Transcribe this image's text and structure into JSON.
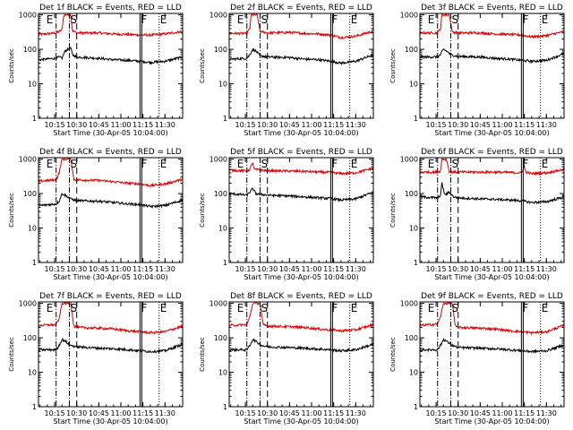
{
  "colors": {
    "events": "#000000",
    "lld": "#e00000",
    "axes": "#000000"
  },
  "shared": {
    "xlabel": "Start Time (30-Apr-05 10:04:00)",
    "ylabel": "Counts/sec",
    "x_tick_labels": [
      "10:15",
      "10:30",
      "10:45",
      "11:00",
      "11:15",
      "11:30"
    ],
    "x_tick_minutes": [
      15,
      30,
      45,
      60,
      75,
      90
    ],
    "x_range_minutes": [
      4,
      102
    ],
    "y_tick_labels": [
      "1",
      "10",
      "100",
      "1000"
    ],
    "y_tick_values": [
      1,
      10,
      100,
      1000
    ],
    "y_range": [
      1,
      1100
    ],
    "y_scale": "log",
    "markers": [
      {
        "label": "E",
        "minute": 16,
        "style": "dash-dot"
      },
      {
        "label": "S",
        "minute": 25,
        "style": "dash-dot"
      },
      {
        "label": "",
        "minute": 30,
        "style": "dashed"
      },
      {
        "label": "F",
        "minute": 73,
        "style": "solid-double"
      },
      {
        "label": "E",
        "minute": 86,
        "style": "dotted"
      }
    ]
  },
  "chart_data": [
    {
      "type": "line",
      "title": "Det 1f BLACK = Events, RED = LLD",
      "series": [
        {
          "values": [
            [
              5,
              270
            ],
            [
              16,
              300
            ],
            [
              18,
              330
            ],
            [
              20,
              360
            ],
            [
              21,
              900
            ],
            [
              22,
              1000
            ],
            [
              26,
              1000
            ],
            [
              27,
              350
            ],
            [
              30,
              300
            ],
            [
              45,
              300
            ],
            [
              55,
              280
            ],
            [
              65,
              270
            ],
            [
              73,
              260
            ],
            [
              80,
              260
            ],
            [
              90,
              280
            ],
            [
              102,
              330
            ]
          ]
        },
        {
          "values": [
            [
              5,
              50
            ],
            [
              16,
              55
            ],
            [
              18,
              60
            ],
            [
              20,
              55
            ],
            [
              22,
              90
            ],
            [
              26,
              110
            ],
            [
              27,
              70
            ],
            [
              30,
              60
            ],
            [
              45,
              55
            ],
            [
              55,
              50
            ],
            [
              65,
              48
            ],
            [
              73,
              45
            ],
            [
              80,
              42
            ],
            [
              90,
              45
            ],
            [
              102,
              60
            ]
          ]
        }
      ]
    },
    {
      "type": "line",
      "title": "Det 2f BLACK = Events, RED = LLD",
      "series": [
        {
          "values": [
            [
              5,
              290
            ],
            [
              16,
              290
            ],
            [
              18,
              400
            ],
            [
              19,
              1000
            ],
            [
              23,
              1000
            ],
            [
              25,
              330
            ],
            [
              30,
              300
            ],
            [
              45,
              310
            ],
            [
              55,
              290
            ],
            [
              65,
              280
            ],
            [
              73,
              260
            ],
            [
              80,
              220
            ],
            [
              90,
              240
            ],
            [
              102,
              340
            ]
          ]
        },
        {
          "values": [
            [
              5,
              52
            ],
            [
              16,
              55
            ],
            [
              18,
              70
            ],
            [
              20,
              100
            ],
            [
              22,
              90
            ],
            [
              25,
              65
            ],
            [
              30,
              60
            ],
            [
              45,
              58
            ],
            [
              55,
              52
            ],
            [
              65,
              50
            ],
            [
              73,
              45
            ],
            [
              80,
              40
            ],
            [
              90,
              45
            ],
            [
              102,
              70
            ]
          ]
        }
      ]
    },
    {
      "type": "line",
      "title": "Det 3f BLACK = Events, RED = LLD",
      "series": [
        {
          "values": [
            [
              5,
              300
            ],
            [
              16,
              300
            ],
            [
              18,
              400
            ],
            [
              19,
              1000
            ],
            [
              24,
              1000
            ],
            [
              26,
              320
            ],
            [
              30,
              300
            ],
            [
              45,
              300
            ],
            [
              55,
              280
            ],
            [
              65,
              270
            ],
            [
              73,
              260
            ],
            [
              80,
              230
            ],
            [
              90,
              250
            ],
            [
              102,
              330
            ]
          ]
        },
        {
          "values": [
            [
              5,
              60
            ],
            [
              16,
              60
            ],
            [
              18,
              70
            ],
            [
              20,
              100
            ],
            [
              22,
              90
            ],
            [
              25,
              70
            ],
            [
              30,
              62
            ],
            [
              45,
              60
            ],
            [
              55,
              55
            ],
            [
              65,
              52
            ],
            [
              73,
              48
            ],
            [
              80,
              45
            ],
            [
              90,
              48
            ],
            [
              102,
              75
            ]
          ]
        }
      ]
    },
    {
      "type": "line",
      "title": "Det 4f BLACK = Events, RED = LLD",
      "series": [
        {
          "values": [
            [
              5,
              230
            ],
            [
              16,
              250
            ],
            [
              18,
              400
            ],
            [
              20,
              1000
            ],
            [
              26,
              1000
            ],
            [
              28,
              260
            ],
            [
              30,
              250
            ],
            [
              45,
              240
            ],
            [
              55,
              220
            ],
            [
              65,
              200
            ],
            [
              73,
              190
            ],
            [
              80,
              170
            ],
            [
              90,
              190
            ],
            [
              102,
              260
            ]
          ]
        },
        {
          "values": [
            [
              5,
              45
            ],
            [
              16,
              50
            ],
            [
              18,
              60
            ],
            [
              20,
              100
            ],
            [
              22,
              90
            ],
            [
              26,
              70
            ],
            [
              30,
              62
            ],
            [
              45,
              60
            ],
            [
              55,
              55
            ],
            [
              65,
              50
            ],
            [
              73,
              48
            ],
            [
              80,
              42
            ],
            [
              90,
              45
            ],
            [
              102,
              65
            ]
          ]
        }
      ]
    },
    {
      "type": "line",
      "title": "Det 5f BLACK = Events, RED = LLD",
      "series": [
        {
          "values": [
            [
              5,
              480
            ],
            [
              16,
              450
            ],
            [
              18,
              500
            ],
            [
              20,
              800
            ],
            [
              21,
              500
            ],
            [
              30,
              460
            ],
            [
              45,
              450
            ],
            [
              55,
              440
            ],
            [
              65,
              420
            ],
            [
              73,
              410
            ],
            [
              80,
              380
            ],
            [
              90,
              400
            ],
            [
              102,
              550
            ]
          ]
        },
        {
          "values": [
            [
              5,
              100
            ],
            [
              16,
              90
            ],
            [
              18,
              110
            ],
            [
              20,
              140
            ],
            [
              22,
              100
            ],
            [
              30,
              90
            ],
            [
              45,
              85
            ],
            [
              55,
              80
            ],
            [
              65,
              75
            ],
            [
              73,
              72
            ],
            [
              80,
              65
            ],
            [
              90,
              70
            ],
            [
              102,
              110
            ]
          ]
        }
      ]
    },
    {
      "type": "line",
      "title": "Det 6f BLACK = Events, RED = LLD",
      "series": [
        {
          "values": [
            [
              5,
              420
            ],
            [
              16,
              420
            ],
            [
              18,
              450
            ],
            [
              19,
              1000
            ],
            [
              22,
              1000
            ],
            [
              24,
              430
            ],
            [
              30,
              420
            ],
            [
              45,
              420
            ],
            [
              55,
              420
            ],
            [
              65,
              410
            ],
            [
              73,
              400
            ],
            [
              75,
              600
            ],
            [
              76,
              420
            ],
            [
              80,
              380
            ],
            [
              90,
              400
            ],
            [
              102,
              500
            ]
          ]
        },
        {
          "values": [
            [
              5,
              80
            ],
            [
              16,
              75
            ],
            [
              18,
              90
            ],
            [
              19,
              200
            ],
            [
              21,
              90
            ],
            [
              24,
              110
            ],
            [
              27,
              80
            ],
            [
              30,
              75
            ],
            [
              45,
              70
            ],
            [
              55,
              68
            ],
            [
              65,
              65
            ],
            [
              73,
              62
            ],
            [
              80,
              55
            ],
            [
              90,
              58
            ],
            [
              102,
              80
            ]
          ]
        }
      ]
    },
    {
      "type": "line",
      "title": "Det 7f BLACK = Events, RED = LLD",
      "series": [
        {
          "values": [
            [
              5,
              230
            ],
            [
              16,
              240
            ],
            [
              18,
              350
            ],
            [
              20,
              1000
            ],
            [
              26,
              1000
            ],
            [
              28,
              220
            ],
            [
              30,
              200
            ],
            [
              45,
              190
            ],
            [
              55,
              180
            ],
            [
              65,
              160
            ],
            [
              73,
              150
            ],
            [
              80,
              140
            ],
            [
              90,
              150
            ],
            [
              102,
              220
            ]
          ]
        },
        {
          "values": [
            [
              5,
              45
            ],
            [
              16,
              45
            ],
            [
              18,
              60
            ],
            [
              20,
              90
            ],
            [
              22,
              80
            ],
            [
              26,
              60
            ],
            [
              30,
              55
            ],
            [
              45,
              50
            ],
            [
              55,
              48
            ],
            [
              65,
              45
            ],
            [
              73,
              42
            ],
            [
              80,
              40
            ],
            [
              90,
              42
            ],
            [
              102,
              65
            ]
          ]
        }
      ]
    },
    {
      "type": "line",
      "title": "Det 8f BLACK = Events, RED = LLD",
      "series": [
        {
          "values": [
            [
              5,
              230
            ],
            [
              16,
              240
            ],
            [
              18,
              400
            ],
            [
              20,
              1000
            ],
            [
              25,
              1000
            ],
            [
              27,
              240
            ],
            [
              30,
              220
            ],
            [
              45,
              210
            ],
            [
              55,
              200
            ],
            [
              65,
              180
            ],
            [
              73,
              170
            ],
            [
              80,
              160
            ],
            [
              90,
              170
            ],
            [
              102,
              240
            ]
          ]
        },
        {
          "values": [
            [
              5,
              45
            ],
            [
              16,
              45
            ],
            [
              18,
              60
            ],
            [
              20,
              90
            ],
            [
              22,
              80
            ],
            [
              26,
              60
            ],
            [
              30,
              55
            ],
            [
              45,
              52
            ],
            [
              55,
              50
            ],
            [
              65,
              47
            ],
            [
              73,
              45
            ],
            [
              80,
              42
            ],
            [
              90,
              45
            ],
            [
              102,
              65
            ]
          ]
        }
      ]
    },
    {
      "type": "line",
      "title": "Det 9f BLACK = Events, RED = LLD",
      "series": [
        {
          "values": [
            [
              5,
              230
            ],
            [
              16,
              250
            ],
            [
              18,
              400
            ],
            [
              20,
              1000
            ],
            [
              26,
              1000
            ],
            [
              28,
              220
            ],
            [
              30,
              200
            ],
            [
              45,
              190
            ],
            [
              55,
              180
            ],
            [
              65,
              160
            ],
            [
              73,
              150
            ],
            [
              80,
              140
            ],
            [
              90,
              150
            ],
            [
              102,
              230
            ]
          ]
        },
        {
          "values": [
            [
              5,
              45
            ],
            [
              16,
              45
            ],
            [
              18,
              60
            ],
            [
              20,
              90
            ],
            [
              22,
              80
            ],
            [
              26,
              60
            ],
            [
              30,
              52
            ],
            [
              45,
              50
            ],
            [
              55,
              48
            ],
            [
              65,
              45
            ],
            [
              73,
              42
            ],
            [
              80,
              40
            ],
            [
              90,
              42
            ],
            [
              102,
              62
            ]
          ]
        }
      ]
    }
  ]
}
